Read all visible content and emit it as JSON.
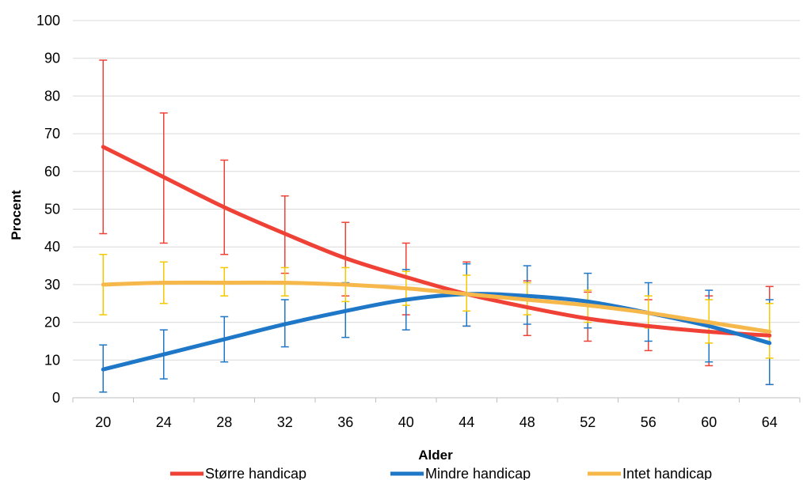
{
  "chart_data": {
    "type": "line",
    "xlabel": "Alder",
    "ylabel": "Procent",
    "ylim": [
      0,
      100
    ],
    "yticks": [
      0,
      10,
      20,
      30,
      40,
      50,
      60,
      70,
      80,
      90,
      100
    ],
    "categories": [
      "20",
      "24",
      "28",
      "32",
      "36",
      "40",
      "44",
      "48",
      "52",
      "56",
      "60",
      "64"
    ],
    "grid": true,
    "legend": "bottom",
    "series": [
      {
        "name": "Større handicap",
        "color": "#ef4136",
        "values": [
          66.5,
          58.5,
          50.5,
          43.5,
          37,
          32,
          27.5,
          24,
          21,
          19,
          17.5,
          16.5
        ],
        "err_low": [
          43.5,
          41,
          38,
          33,
          27,
          22,
          19,
          16.5,
          15,
          12.5,
          8.5,
          3.5
        ],
        "err_high": [
          89.5,
          75.5,
          63,
          53.5,
          46.5,
          41,
          36,
          31,
          28,
          26,
          27,
          29.5
        ]
      },
      {
        "name": "Mindre handicap",
        "color": "#1f77c8",
        "values": [
          7.5,
          11.5,
          15.5,
          19.5,
          23,
          26,
          27.5,
          27,
          25.5,
          22.5,
          19,
          14.5
        ],
        "err_low": [
          1.5,
          5,
          9.5,
          13.5,
          16,
          18,
          19,
          19.5,
          18.5,
          15,
          9.5,
          3.5
        ],
        "err_high": [
          14,
          18,
          21.5,
          26,
          30.5,
          34,
          35.5,
          35,
          33,
          30.5,
          28.5,
          26
        ]
      },
      {
        "name": "Intet handicap",
        "color": "#f7b84b",
        "err_color": "#f5c800",
        "values": [
          30,
          30.5,
          30.5,
          30.5,
          30,
          29,
          27.5,
          26,
          24.5,
          22.5,
          20,
          17.5
        ],
        "err_low": [
          22,
          25,
          27,
          27,
          25.5,
          24.5,
          23,
          22,
          20,
          18.5,
          14.5,
          10.5
        ],
        "err_high": [
          38,
          36,
          34.5,
          34.5,
          34.5,
          33.5,
          32.5,
          30.5,
          28.5,
          27,
          26,
          25
        ]
      }
    ]
  }
}
